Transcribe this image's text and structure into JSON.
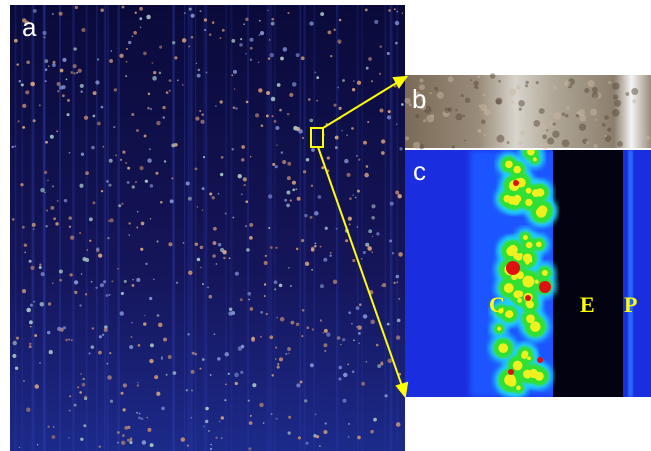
{
  "panel_labels": [
    "a",
    "b",
    "c"
  ],
  "region_labels": [
    "C",
    "E",
    "P"
  ]
}
